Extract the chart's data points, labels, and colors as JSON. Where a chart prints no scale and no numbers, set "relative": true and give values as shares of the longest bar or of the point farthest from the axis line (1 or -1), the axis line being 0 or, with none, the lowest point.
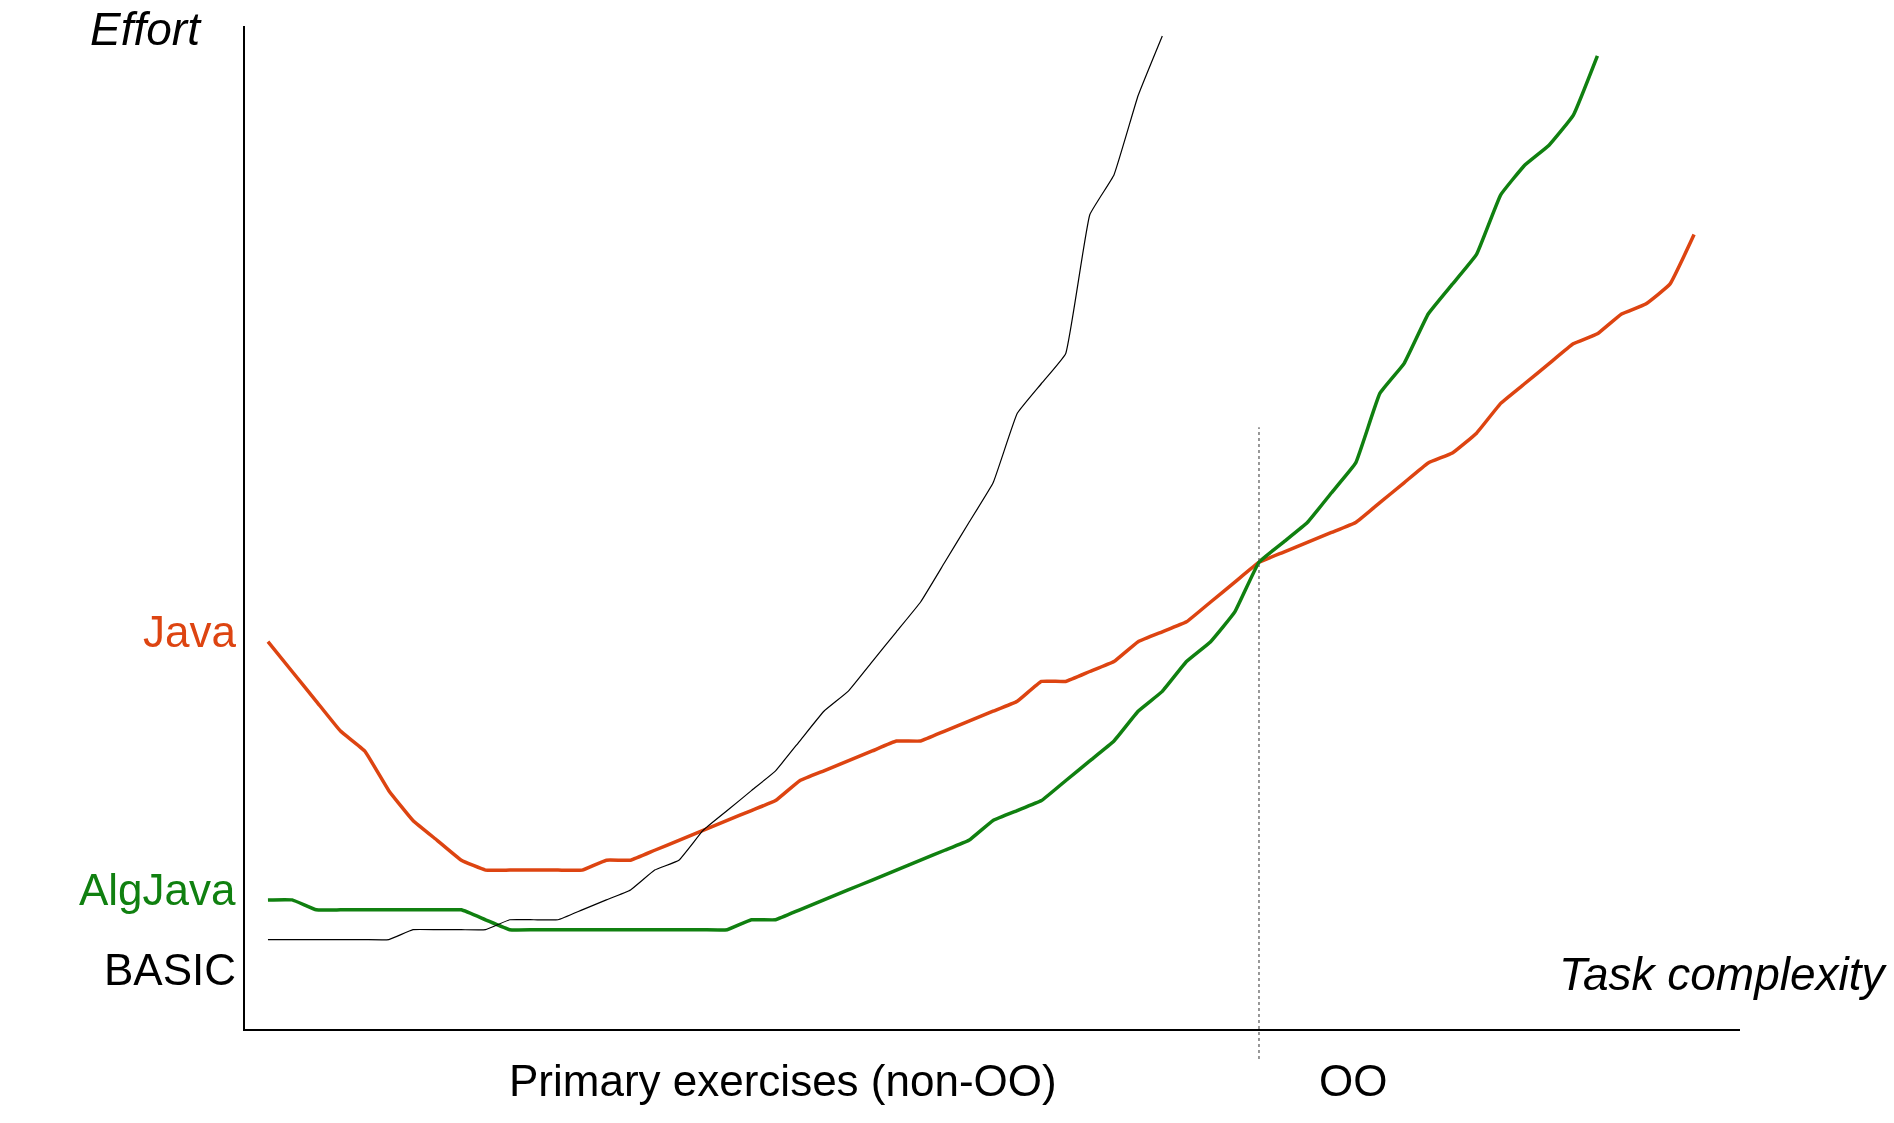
{
  "chart_data": {
    "type": "line",
    "relative": true,
    "ylabel": "Effort",
    "xlabel": "Task complexity",
    "categories": [
      null,
      null,
      null,
      null,
      null,
      null,
      null,
      null,
      null,
      null,
      null,
      null,
      null,
      null,
      null,
      null,
      null,
      null,
      null,
      null,
      null,
      null,
      null,
      null,
      null,
      null,
      null,
      null,
      null,
      null,
      null,
      null,
      null,
      null,
      null,
      null,
      null,
      null,
      null,
      null,
      null,
      null,
      null,
      null,
      null,
      null,
      null,
      null,
      null,
      null,
      null,
      null,
      null,
      null,
      null,
      null,
      null,
      null,
      null,
      null,
      null
    ],
    "series": [
      {
        "name": "Java",
        "color": "#dd4411",
        "values": [
          0.39,
          0.36,
          0.33,
          0.3,
          0.28,
          0.24,
          0.21,
          0.19,
          0.17,
          0.16,
          0.16,
          0.16,
          0.16,
          0.16,
          0.17,
          0.17,
          0.18,
          0.19,
          0.2,
          0.21,
          0.22,
          0.23,
          0.25,
          0.26,
          0.27,
          0.28,
          0.29,
          0.29,
          0.3,
          0.31,
          0.32,
          0.33,
          0.35,
          0.35,
          0.36,
          0.37,
          0.39,
          0.4,
          0.41,
          0.43,
          0.45,
          0.47,
          0.48,
          0.49,
          0.5,
          0.51,
          0.53,
          0.55,
          0.57,
          0.58,
          0.6,
          0.63,
          0.65,
          0.67,
          0.69,
          0.7,
          0.72,
          0.73,
          0.75,
          0.8,
          null
        ]
      },
      {
        "name": "AlgJava",
        "color": "#108010",
        "values": [
          0.13,
          0.13,
          0.12,
          0.12,
          0.12,
          0.12,
          0.12,
          0.12,
          0.12,
          0.11,
          0.1,
          0.1,
          0.1,
          0.1,
          0.1,
          0.1,
          0.1,
          0.1,
          0.1,
          0.1,
          0.11,
          0.11,
          0.12,
          0.13,
          0.14,
          0.15,
          0.16,
          0.17,
          0.18,
          0.19,
          0.21,
          0.22,
          0.23,
          0.25,
          0.27,
          0.29,
          0.32,
          0.34,
          0.37,
          0.39,
          0.42,
          0.47,
          0.49,
          0.51,
          0.54,
          0.57,
          0.64,
          0.67,
          0.72,
          0.75,
          0.78,
          0.84,
          0.87,
          0.89,
          0.92,
          0.98,
          null,
          null,
          null,
          null,
          null
        ]
      },
      {
        "name": "BASIC",
        "color": "#000000",
        "values": [
          0.09,
          0.09,
          0.09,
          0.09,
          0.09,
          0.09,
          0.1,
          0.1,
          0.1,
          0.1,
          0.11,
          0.11,
          0.11,
          0.12,
          0.13,
          0.14,
          0.16,
          0.17,
          0.2,
          0.22,
          0.24,
          0.26,
          0.29,
          0.32,
          0.34,
          0.37,
          0.4,
          0.43,
          0.47,
          0.51,
          0.55,
          0.62,
          0.65,
          0.68,
          0.82,
          0.86,
          0.94,
          1.0,
          null,
          null,
          null,
          null,
          null,
          null,
          null,
          null,
          null,
          null,
          null,
          null,
          null,
          null,
          null,
          null,
          null,
          null,
          null,
          null,
          null,
          null,
          null
        ]
      }
    ],
    "annotations": [
      "Primary exercises (non-OO)",
      "OO"
    ],
    "legend": false,
    "marker": "none",
    "line_style": "solid"
  }
}
